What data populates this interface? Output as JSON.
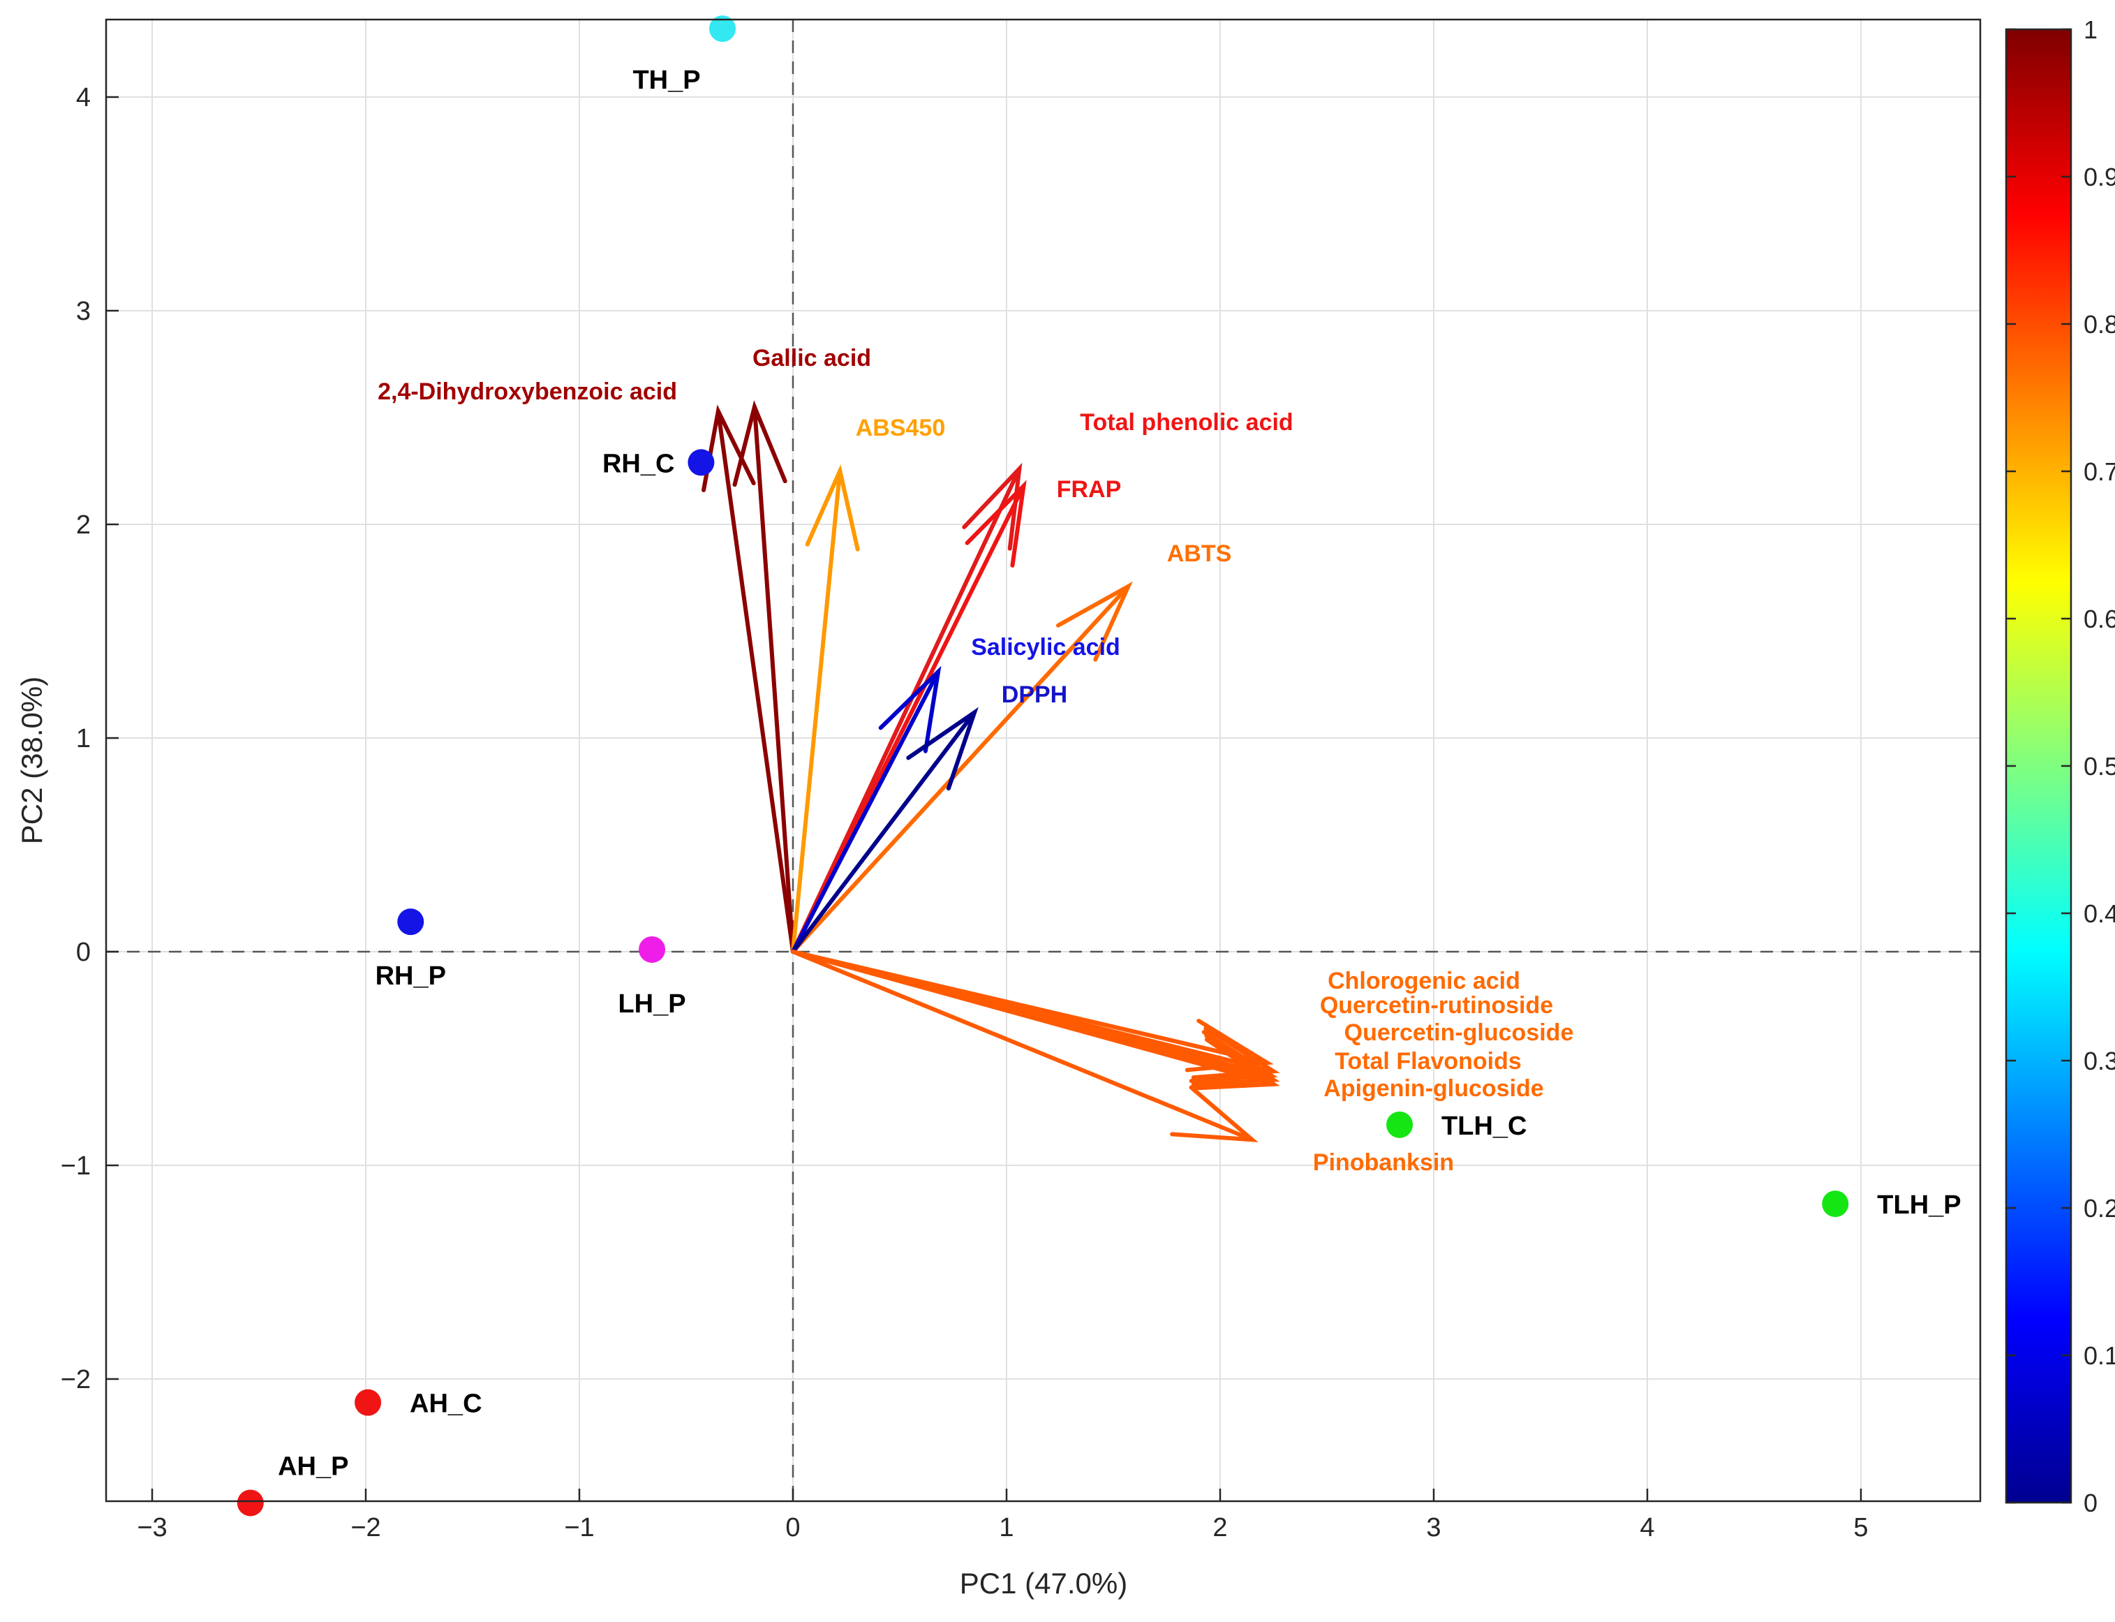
{
  "chart_data": {
    "type": "scatter",
    "subtype": "pca-biplot",
    "title": "",
    "xlabel": "PC1 (47.0%)",
    "ylabel": "PC2 (38.0%)",
    "xlim": [
      -3.2,
      5.55
    ],
    "ylim": [
      -2.6,
      4.35
    ],
    "xticks": [
      -3,
      -2,
      -1,
      0,
      1,
      2,
      3,
      4,
      5
    ],
    "xtick_labels": [
      "−3",
      "−2",
      "−1",
      "0",
      "1",
      "2",
      "3",
      "4",
      "5"
    ],
    "yticks": [
      -2,
      -1,
      0,
      1,
      2,
      3,
      4
    ],
    "ytick_labels": [
      "−2",
      "−1",
      "0",
      "1",
      "2",
      "3",
      "4"
    ],
    "grid": true,
    "reference_lines": "dashed lines at x=0 and y=0",
    "points": [
      {
        "label": "TH_P",
        "x": -0.33,
        "y": 4.32,
        "color": "#33e8f0",
        "label_anchor": "below-left"
      },
      {
        "label": "RH_C",
        "x": -0.43,
        "y": 2.29,
        "color": "#1414e6",
        "label_anchor": "left"
      },
      {
        "label": "RH_P",
        "x": -1.79,
        "y": 0.14,
        "color": "#1414e6",
        "label_anchor": "below"
      },
      {
        "label": "LH_P",
        "x": -0.66,
        "y": 0.01,
        "color": "#ee1ee8",
        "label_anchor": "below"
      },
      {
        "label": "TLH_C",
        "x": 2.84,
        "y": -0.81,
        "color": "#14e614",
        "label_anchor": "right"
      },
      {
        "label": "TLH_P",
        "x": 4.88,
        "y": -1.18,
        "color": "#14e614",
        "label_anchor": "right"
      },
      {
        "label": "AH_C",
        "x": -1.99,
        "y": -2.11,
        "color": "#f01414",
        "label_anchor": "right"
      },
      {
        "label": "AH_P",
        "x": -2.54,
        "y": -2.58,
        "color": "#f01414",
        "label_anchor": "above-right"
      }
    ],
    "vectors": [
      {
        "name": "2,4-Dihydroxybenzoic acid",
        "x": -0.35,
        "y": 2.53,
        "value": 0.97,
        "color": "#8b0000"
      },
      {
        "name": "Gallic acid",
        "x": -0.18,
        "y": 2.55,
        "value": 0.97,
        "color": "#8b0000"
      },
      {
        "name": "ABS450",
        "x": 0.22,
        "y": 2.25,
        "value": 0.75,
        "color": "#ff9900"
      },
      {
        "name": "Total phenolic acid",
        "x": 1.06,
        "y": 2.26,
        "value": 0.92,
        "color": "#e11b1b"
      },
      {
        "name": "FRAP",
        "x": 1.08,
        "y": 2.18,
        "value": 0.93,
        "color": "#f01414"
      },
      {
        "name": "ABTS",
        "x": 1.57,
        "y": 1.71,
        "value": 0.82,
        "color": "#ff6a00"
      },
      {
        "name": "Salicylic acid",
        "x": 0.68,
        "y": 1.31,
        "value": 0.1,
        "color": "#0000cc"
      },
      {
        "name": "DPPH",
        "x": 0.85,
        "y": 1.12,
        "value": 0.02,
        "color": "#00008b"
      },
      {
        "name": "Chlorogenic acid",
        "x": 2.22,
        "y": -0.52,
        "value": 0.84,
        "color": "#ff5a00"
      },
      {
        "name": "Quercetin-rutinoside",
        "x": 2.25,
        "y": -0.56,
        "value": 0.84,
        "color": "#ff5a00"
      },
      {
        "name": "Quercetin-glucoside",
        "x": 2.25,
        "y": -0.6,
        "value": 0.84,
        "color": "#ff5a00"
      },
      {
        "name": "Total Flavonoids",
        "x": 2.25,
        "y": -0.62,
        "value": 0.84,
        "color": "#ff5a00"
      },
      {
        "name": "Apigenin-glucoside",
        "x": 2.24,
        "y": -0.58,
        "value": 0.84,
        "color": "#ff5a00"
      },
      {
        "name": "Pinobanksin",
        "x": 2.15,
        "y": -0.88,
        "value": 0.84,
        "color": "#ff5a00"
      }
    ],
    "vector_label_texts": [
      {
        "text": "2,4-Dihydroxybenzoic acid",
        "color": "#a00000"
      },
      {
        "text": "Gallic acid",
        "color": "#a00000"
      },
      {
        "text": "ABS450",
        "color": "#ffa000"
      },
      {
        "text": "Total phenolic acid",
        "color": "#f01414"
      },
      {
        "text": "FRAP",
        "color": "#f01414"
      },
      {
        "text": "ABTS",
        "color": "#ff7000"
      },
      {
        "text": "Salicylic acid",
        "color": "#1414e6"
      },
      {
        "text": "DPPH",
        "color": "#1414c8"
      },
      {
        "text": "Chlorogenic acid",
        "color": "#ff6a00"
      },
      {
        "text": "Quercetin-rutinoside",
        "color": "#ff6a00"
      },
      {
        "text": "Quercetin-glucoside",
        "color": "#ff6a00"
      },
      {
        "text": "Total Flavonoids",
        "color": "#ff6a00"
      },
      {
        "text": "Apigenin-glucoside",
        "color": "#ff6a00"
      },
      {
        "text": "Pinobanksin",
        "color": "#ff6a00"
      }
    ],
    "colorbar": {
      "colormap": "jet",
      "min": 0,
      "max": 1,
      "ticks": [
        0,
        0.1,
        0.2,
        0.3,
        0.4,
        0.5,
        0.6,
        0.7,
        0.8,
        0.9,
        1
      ],
      "tick_labels": [
        "0",
        "0.1",
        "0.2",
        "0.3",
        "0.4",
        "0.5",
        "0.6",
        "0.7",
        "0.8",
        "0.9",
        "1"
      ]
    }
  }
}
